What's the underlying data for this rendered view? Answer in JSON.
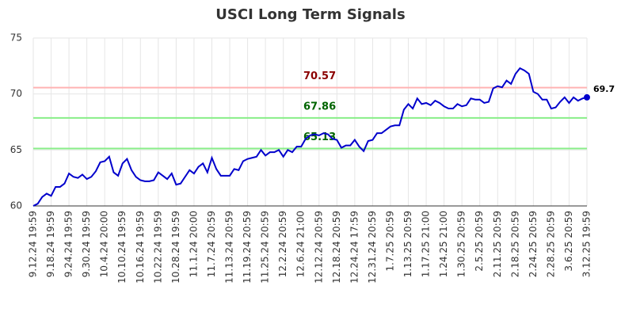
{
  "chart_data": {
    "type": "line",
    "title": "USCI Long Term Signals",
    "categories": [
      "9.12.24 19:59",
      null,
      null,
      null,
      "9.18.24 19:59",
      null,
      null,
      null,
      "9.24.24 19:59",
      null,
      null,
      null,
      "9.30.24 19:59",
      null,
      null,
      null,
      "10.4.24 20:00",
      null,
      null,
      null,
      "10.10.24 19:59",
      null,
      null,
      null,
      "10.16.24 19:59",
      null,
      null,
      null,
      "10.22.24 19:59",
      null,
      null,
      null,
      "10.28.24 19:59",
      null,
      null,
      null,
      "11.1.24 20:00",
      null,
      null,
      null,
      "11.7.24 20:59",
      null,
      null,
      null,
      "11.13.24 20:59",
      null,
      null,
      null,
      "11.19.24 20:59",
      null,
      null,
      null,
      "11.25.24 20:59",
      null,
      null,
      null,
      "12.2.24 20:59",
      null,
      null,
      null,
      "12.6.24 21:00",
      null,
      null,
      null,
      "12.12.24 20:59",
      null,
      null,
      null,
      "12.18.24 20:59",
      null,
      null,
      null,
      "12.24.24 17:59",
      null,
      null,
      null,
      "12.31.24 20:59",
      null,
      null,
      null,
      "1.7.25 20:59",
      null,
      null,
      null,
      "1.13.25 20:59",
      null,
      null,
      null,
      "1.17.25 21:00",
      null,
      null,
      null,
      "1.24.25 21:00",
      null,
      null,
      null,
      "1.30.25 20:59",
      null,
      null,
      null,
      "2.5.25 20:59",
      null,
      null,
      null,
      "2.11.25 20:59",
      null,
      null,
      null,
      "2.18.25 20:59",
      null,
      null,
      null,
      "2.24.25 20:59",
      null,
      null,
      null,
      "2.28.25 20:59",
      null,
      null,
      null,
      "3.6.25 20:59",
      null,
      null,
      null,
      "3.12.25 19:59"
    ],
    "series": [
      {
        "color": "#0000cc",
        "values": [
          60.0,
          60.2,
          60.8,
          61.1,
          60.9,
          61.7,
          61.7,
          62.0,
          62.9,
          62.6,
          62.5,
          62.8,
          62.4,
          62.6,
          63.1,
          63.9,
          64.0,
          64.4,
          63.0,
          62.7,
          63.8,
          64.2,
          63.2,
          62.6,
          62.3,
          62.2,
          62.2,
          62.3,
          63.0,
          62.7,
          62.4,
          62.9,
          61.9,
          62.0,
          62.6,
          63.2,
          62.9,
          63.5,
          63.8,
          63.0,
          64.3,
          63.3,
          62.7,
          62.7,
          62.7,
          63.3,
          63.2,
          64.0,
          64.2,
          64.3,
          64.4,
          65.0,
          64.5,
          64.8,
          64.8,
          65.0,
          64.4,
          65.0,
          64.8,
          65.3,
          65.3,
          66.0,
          66.3,
          66.4,
          66.3,
          66.5,
          66.4,
          66.0,
          65.9,
          65.2,
          65.4,
          65.4,
          65.9,
          65.3,
          64.9,
          65.8,
          65.9,
          66.5,
          66.5,
          66.8,
          67.1,
          67.2,
          67.2,
          68.6,
          69.1,
          68.7,
          69.6,
          69.1,
          69.2,
          69.0,
          69.4,
          69.2,
          68.9,
          68.7,
          68.7,
          69.1,
          68.9,
          69.0,
          69.6,
          69.5,
          69.5,
          69.2,
          69.3,
          70.5,
          70.7,
          70.6,
          71.2,
          70.9,
          71.8,
          72.3,
          72.1,
          71.8,
          70.2,
          70.0,
          69.5,
          69.5,
          68.7,
          68.8,
          69.3,
          69.7,
          69.2,
          69.7,
          69.4,
          69.6,
          69.7
        ]
      }
    ],
    "reference_lines": [
      {
        "value": 70.57,
        "color": "#ffb3b3",
        "label_color": "#8b0000"
      },
      {
        "value": 67.86,
        "color": "#88ee88",
        "label_color": "#006400"
      },
      {
        "value": 65.13,
        "color": "#88ee88",
        "label_color": "#006400"
      }
    ],
    "ylim": [
      60,
      75
    ],
    "yticks": [
      60,
      65,
      70,
      75
    ],
    "grid": true
  }
}
